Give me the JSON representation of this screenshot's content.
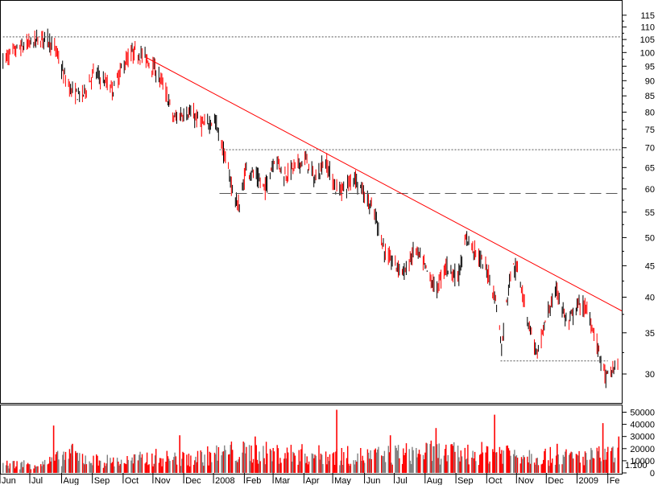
{
  "chart_data": [
    {
      "type": "candlestick",
      "panel": "price",
      "scale": "log",
      "ylim": [
        27,
        121
      ],
      "ytick_labels": [
        "30",
        "35",
        "40",
        "45",
        "50",
        "55",
        "60",
        "65",
        "70",
        "75",
        "80",
        "85",
        "90",
        "95",
        "100",
        "105",
        "110",
        "115"
      ],
      "xtick_labels": [
        "Jun",
        "Jul",
        "Aug",
        "Sep",
        "Oct",
        "Nov",
        "Dec",
        "2008",
        "Feb",
        "Mar",
        "Apr",
        "May",
        "Jun",
        "Jul",
        "Aug",
        "Sep",
        "Oct",
        "Nov",
        "Dec",
        "2009",
        "Fe"
      ],
      "grid": false,
      "colors": {
        "up": "#000000",
        "down": "#ff0000",
        "trendline": "#ff0000",
        "levels": "#555555"
      },
      "series": [
        {
          "values": [
            {
              "x": "2007-06-01",
              "y": 97
            },
            {
              "x": "2007-06-15",
              "y": 101
            },
            {
              "x": "2007-07-01",
              "y": 104
            },
            {
              "x": "2007-07-15",
              "y": 106
            },
            {
              "x": "2007-07-25",
              "y": 100
            },
            {
              "x": "2007-08-01",
              "y": 92
            },
            {
              "x": "2007-08-10",
              "y": 86
            },
            {
              "x": "2007-08-20",
              "y": 85
            },
            {
              "x": "2007-09-01",
              "y": 93
            },
            {
              "x": "2007-09-10",
              "y": 90
            },
            {
              "x": "2007-09-20",
              "y": 87
            },
            {
              "x": "2007-10-01",
              "y": 96
            },
            {
              "x": "2007-10-10",
              "y": 100
            },
            {
              "x": "2007-10-20",
              "y": 99
            },
            {
              "x": "2007-11-01",
              "y": 94
            },
            {
              "x": "2007-11-10",
              "y": 88
            },
            {
              "x": "2007-11-20",
              "y": 78
            },
            {
              "x": "2007-12-01",
              "y": 80
            },
            {
              "x": "2007-12-10",
              "y": 79
            },
            {
              "x": "2007-12-20",
              "y": 76
            },
            {
              "x": "2007-12-31",
              "y": 78
            },
            {
              "x": "2008-01-10",
              "y": 68
            },
            {
              "x": "2008-01-20",
              "y": 58
            },
            {
              "x": "2008-01-25",
              "y": 56
            },
            {
              "x": "2008-02-01",
              "y": 65
            },
            {
              "x": "2008-02-10",
              "y": 63
            },
            {
              "x": "2008-02-20",
              "y": 60
            },
            {
              "x": "2008-03-01",
              "y": 68
            },
            {
              "x": "2008-03-10",
              "y": 63
            },
            {
              "x": "2008-03-20",
              "y": 65
            },
            {
              "x": "2008-04-01",
              "y": 67
            },
            {
              "x": "2008-04-10",
              "y": 62
            },
            {
              "x": "2008-04-20",
              "y": 67
            },
            {
              "x": "2008-05-01",
              "y": 60
            },
            {
              "x": "2008-05-10",
              "y": 60
            },
            {
              "x": "2008-05-20",
              "y": 63
            },
            {
              "x": "2008-06-01",
              "y": 58
            },
            {
              "x": "2008-06-10",
              "y": 54
            },
            {
              "x": "2008-06-20",
              "y": 47
            },
            {
              "x": "2008-07-01",
              "y": 45
            },
            {
              "x": "2008-07-10",
              "y": 44
            },
            {
              "x": "2008-07-20",
              "y": 48
            },
            {
              "x": "2008-08-01",
              "y": 44
            },
            {
              "x": "2008-08-10",
              "y": 41
            },
            {
              "x": "2008-08-20",
              "y": 45
            },
            {
              "x": "2008-09-01",
              "y": 43
            },
            {
              "x": "2008-09-10",
              "y": 50
            },
            {
              "x": "2008-09-20",
              "y": 47
            },
            {
              "x": "2008-10-01",
              "y": 44
            },
            {
              "x": "2008-10-10",
              "y": 39
            },
            {
              "x": "2008-10-15",
              "y": 33
            },
            {
              "x": "2008-10-25",
              "y": 45
            },
            {
              "x": "2008-11-01",
              "y": 44
            },
            {
              "x": "2008-11-10",
              "y": 37
            },
            {
              "x": "2008-11-20",
              "y": 32
            },
            {
              "x": "2008-12-01",
              "y": 38
            },
            {
              "x": "2008-12-10",
              "y": 41
            },
            {
              "x": "2008-12-20",
              "y": 36
            },
            {
              "x": "2009-01-01",
              "y": 39
            },
            {
              "x": "2009-01-10",
              "y": 38
            },
            {
              "x": "2009-01-20",
              "y": 33
            },
            {
              "x": "2009-01-28",
              "y": 29.5
            },
            {
              "x": "2009-02-05",
              "y": 30.5
            },
            {
              "x": "2009-02-10",
              "y": 32
            }
          ]
        }
      ],
      "trendline": {
        "from": {
          "x": "2007-10-24",
          "y": 98
        },
        "to": {
          "x": "2009-02-13",
          "y": 38
        }
      },
      "levels": [
        {
          "y": 106,
          "from": "2007-06-01",
          "to": "2009-02-13",
          "style": "dotted"
        },
        {
          "y": 69.5,
          "from": "2008-01-05",
          "to": "2009-02-13",
          "style": "dotted"
        },
        {
          "y": 59,
          "from": "2008-01-05",
          "to": "2009-02-13",
          "style": "dashed"
        },
        {
          "y": 31.5,
          "from": "2008-10-14",
          "to": "2009-01-30",
          "style": "dotted"
        }
      ]
    },
    {
      "type": "bar",
      "panel": "volume",
      "ylim": [
        0,
        55000
      ],
      "ytick_labels": [
        "0",
        "10000",
        "20000",
        "30000",
        "40000",
        "50000"
      ],
      "corner_label": "1:100",
      "colors": {
        "up": "#808080",
        "down": "#ff0000"
      },
      "volume_profile": [
        {
          "x": "2007-06-01",
          "y": 8000
        },
        {
          "x": "2007-07-15",
          "y": 9000
        },
        {
          "x": "2007-08-05",
          "y": 18000
        },
        {
          "x": "2007-09-01",
          "y": 12000
        },
        {
          "x": "2007-10-01",
          "y": 11000
        },
        {
          "x": "2007-11-01",
          "y": 15000
        },
        {
          "x": "2007-12-01",
          "y": 13000
        },
        {
          "x": "2008-01-15",
          "y": 20000
        },
        {
          "x": "2008-03-01",
          "y": 19000
        },
        {
          "x": "2008-04-20",
          "y": 17000
        },
        {
          "x": "2008-06-01",
          "y": 16000
        },
        {
          "x": "2008-08-01",
          "y": 20000
        },
        {
          "x": "2008-09-15",
          "y": 18000
        },
        {
          "x": "2008-10-15",
          "y": 21000
        },
        {
          "x": "2008-11-15",
          "y": 17000
        },
        {
          "x": "2008-12-15",
          "y": 15000
        },
        {
          "x": "2009-01-15",
          "y": 16000
        },
        {
          "x": "2009-02-10",
          "y": 18000
        }
      ],
      "spikes": [
        {
          "x": "2007-07-22",
          "y": 39000
        },
        {
          "x": "2007-08-10",
          "y": 24000
        },
        {
          "x": "2007-11-26",
          "y": 31000
        },
        {
          "x": "2008-02-10",
          "y": 30000
        },
        {
          "x": "2008-05-02",
          "y": 52000
        },
        {
          "x": "2008-06-25",
          "y": 31000
        },
        {
          "x": "2008-08-10",
          "y": 37000
        },
        {
          "x": "2008-10-08",
          "y": 48000
        },
        {
          "x": "2008-12-10",
          "y": 24000
        },
        {
          "x": "2009-01-25",
          "y": 41000
        },
        {
          "x": "2009-02-10",
          "y": 30000
        }
      ]
    }
  ]
}
